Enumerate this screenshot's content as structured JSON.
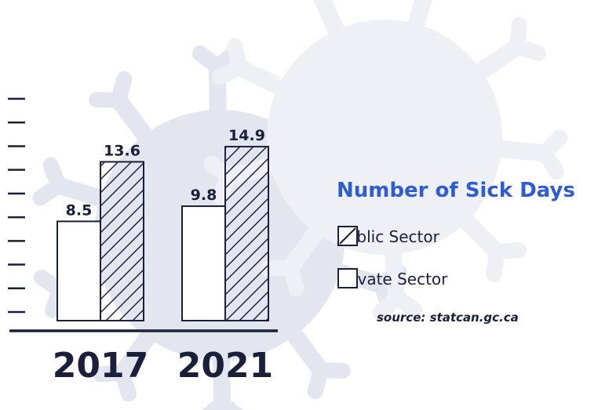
{
  "colors": {
    "ink": "#1a1f3c",
    "accent": "#2e5bd6",
    "background_virus": "#e3e6ee"
  },
  "background": {
    "icon": "virus-icon"
  },
  "legend": {
    "title": "Number of Sick Days",
    "items": [
      {
        "label": "Public Sector",
        "pattern": "hatched"
      },
      {
        "label": "Private Sector",
        "pattern": "empty"
      }
    ]
  },
  "source": "source: statcan.gc.ca",
  "chart_data": {
    "type": "bar",
    "title": "Number of Sick Days",
    "categories": [
      "2017",
      "2021"
    ],
    "series": [
      {
        "name": "Private Sector",
        "pattern": "empty",
        "values": [
          8.5,
          9.8
        ]
      },
      {
        "name": "Public Sector",
        "pattern": "hatched",
        "values": [
          13.6,
          14.9
        ]
      }
    ],
    "data_labels": [
      [
        "8.5",
        "13.6"
      ],
      [
        "9.8",
        "14.9"
      ]
    ],
    "ylim": [
      0,
      19
    ],
    "ytick_count": 10,
    "grid": false,
    "legend_position": "right",
    "xlabel": "",
    "ylabel": ""
  }
}
